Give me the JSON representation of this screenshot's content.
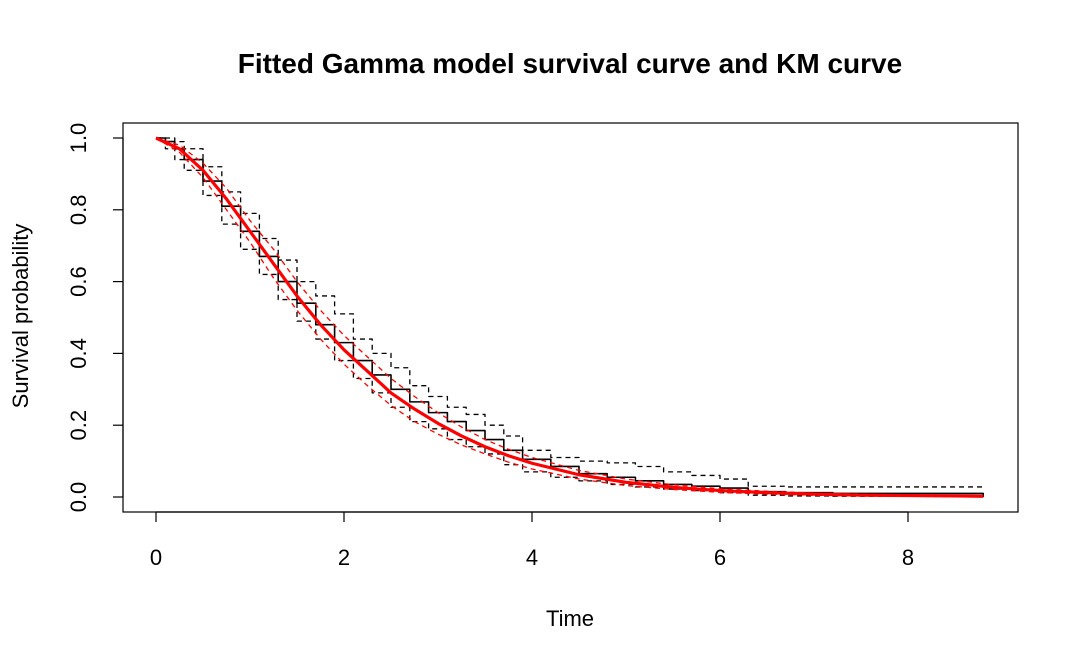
{
  "chart_data": {
    "type": "line",
    "title": "Fitted Gamma model survival curve and KM curve",
    "xlabel": "Time",
    "ylabel": "Survival probability",
    "xlim": [
      0,
      8.8
    ],
    "ylim": [
      0,
      1.0
    ],
    "x_ticks": [
      "0",
      "2",
      "4",
      "6",
      "8"
    ],
    "y_ticks": [
      "0.0",
      "0.2",
      "0.4",
      "0.6",
      "0.8",
      "1.0"
    ],
    "grid": false,
    "legend": "none",
    "colors": {
      "km": "#000000",
      "gamma": "#ff0000"
    },
    "series": [
      {
        "kind": "km",
        "line": "solid",
        "color": "#000000",
        "x": [
          0,
          0.1,
          0.2,
          0.3,
          0.5,
          0.7,
          0.9,
          1.1,
          1.3,
          1.5,
          1.7,
          1.9,
          2.1,
          2.3,
          2.5,
          2.7,
          2.9,
          3.1,
          3.3,
          3.5,
          3.7,
          3.9,
          4.2,
          4.5,
          4.8,
          5.1,
          5.4,
          5.7,
          6.0,
          6.3,
          6.7,
          7.2,
          7.6,
          8.0,
          8.4,
          8.8
        ],
        "y": [
          1.0,
          0.99,
          0.97,
          0.94,
          0.88,
          0.81,
          0.74,
          0.67,
          0.6,
          0.54,
          0.48,
          0.43,
          0.38,
          0.34,
          0.3,
          0.265,
          0.235,
          0.21,
          0.185,
          0.16,
          0.13,
          0.105,
          0.085,
          0.065,
          0.055,
          0.045,
          0.035,
          0.03,
          0.025,
          0.015,
          0.012,
          0.01,
          0.01,
          0.01,
          0.01,
          0.0
        ]
      },
      {
        "kind": "km-ci-upper",
        "line": "dashed",
        "color": "#000000",
        "x": [
          0,
          0.1,
          0.2,
          0.3,
          0.5,
          0.7,
          0.9,
          1.1,
          1.3,
          1.5,
          1.7,
          1.9,
          2.1,
          2.3,
          2.5,
          2.7,
          2.9,
          3.1,
          3.3,
          3.5,
          3.7,
          3.9,
          4.2,
          4.5,
          4.8,
          5.1,
          5.4,
          5.7,
          6.0,
          6.3,
          6.7,
          7.2,
          7.6,
          8.0,
          8.4,
          8.8
        ],
        "y": [
          1.0,
          1.0,
          0.99,
          0.97,
          0.92,
          0.85,
          0.79,
          0.72,
          0.66,
          0.6,
          0.56,
          0.51,
          0.44,
          0.4,
          0.36,
          0.31,
          0.28,
          0.25,
          0.23,
          0.2,
          0.17,
          0.13,
          0.11,
          0.1,
          0.095,
          0.085,
          0.07,
          0.06,
          0.05,
          0.03,
          0.028,
          0.028,
          0.028,
          0.028,
          0.028,
          0.028
        ]
      },
      {
        "kind": "km-ci-lower",
        "line": "dashed",
        "color": "#000000",
        "x": [
          0,
          0.1,
          0.2,
          0.3,
          0.5,
          0.7,
          0.9,
          1.1,
          1.3,
          1.5,
          1.7,
          1.9,
          2.1,
          2.3,
          2.5,
          2.7,
          2.9,
          3.1,
          3.3,
          3.5,
          3.7,
          3.9,
          4.2,
          4.5,
          4.8,
          5.1,
          5.4,
          5.7,
          6.0,
          6.3,
          6.7,
          7.2,
          7.6,
          8.0,
          8.4,
          8.8
        ],
        "y": [
          1.0,
          0.97,
          0.94,
          0.91,
          0.84,
          0.76,
          0.69,
          0.62,
          0.55,
          0.49,
          0.44,
          0.38,
          0.33,
          0.29,
          0.25,
          0.21,
          0.19,
          0.16,
          0.14,
          0.12,
          0.09,
          0.07,
          0.055,
          0.045,
          0.035,
          0.028,
          0.022,
          0.018,
          0.012,
          0.005,
          0.003,
          0.002,
          0.002,
          0.002,
          0.002,
          0.002
        ]
      },
      {
        "kind": "gamma-fit",
        "line": "solid",
        "color": "#ff0000",
        "x": [
          0,
          0.25,
          0.5,
          0.75,
          1.0,
          1.25,
          1.5,
          1.75,
          2.0,
          2.25,
          2.5,
          2.75,
          3.0,
          3.25,
          3.5,
          3.75,
          4.0,
          4.5,
          5.0,
          5.5,
          6.0,
          6.5,
          7.0,
          7.5,
          8.0,
          8.5,
          8.8
        ],
        "y": [
          1.0,
          0.97,
          0.91,
          0.83,
          0.74,
          0.65,
          0.56,
          0.48,
          0.41,
          0.35,
          0.29,
          0.245,
          0.205,
          0.17,
          0.14,
          0.115,
          0.094,
          0.062,
          0.041,
          0.027,
          0.018,
          0.012,
          0.008,
          0.005,
          0.004,
          0.003,
          0.002
        ]
      },
      {
        "kind": "gamma-ci-upper",
        "line": "dashed",
        "color": "#ff0000",
        "x": [
          0,
          0.25,
          0.5,
          0.75,
          1.0,
          1.25,
          1.5,
          1.75,
          2.0,
          2.25,
          2.5,
          2.75,
          3.0,
          3.25,
          3.5,
          3.75,
          4.0,
          4.5,
          5.0,
          5.5,
          6.0,
          6.5,
          7.0,
          7.5,
          8.0,
          8.5,
          8.8
        ],
        "y": [
          1.0,
          0.98,
          0.93,
          0.86,
          0.77,
          0.69,
          0.6,
          0.52,
          0.45,
          0.39,
          0.33,
          0.28,
          0.235,
          0.195,
          0.16,
          0.133,
          0.11,
          0.074,
          0.05,
          0.034,
          0.023,
          0.016,
          0.011,
          0.008,
          0.006,
          0.005,
          0.004
        ]
      },
      {
        "kind": "gamma-ci-lower",
        "line": "dashed",
        "color": "#ff0000",
        "x": [
          0,
          0.25,
          0.5,
          0.75,
          1.0,
          1.25,
          1.5,
          1.75,
          2.0,
          2.25,
          2.5,
          2.75,
          3.0,
          3.25,
          3.5,
          3.75,
          4.0,
          4.5,
          5.0,
          5.5,
          6.0,
          6.5,
          7.0,
          7.5,
          8.0,
          8.5,
          8.8
        ],
        "y": [
          1.0,
          0.96,
          0.89,
          0.8,
          0.71,
          0.61,
          0.52,
          0.44,
          0.37,
          0.31,
          0.255,
          0.21,
          0.175,
          0.145,
          0.12,
          0.097,
          0.078,
          0.05,
          0.032,
          0.021,
          0.013,
          0.008,
          0.005,
          0.003,
          0.002,
          0.001,
          0.001
        ]
      }
    ]
  }
}
